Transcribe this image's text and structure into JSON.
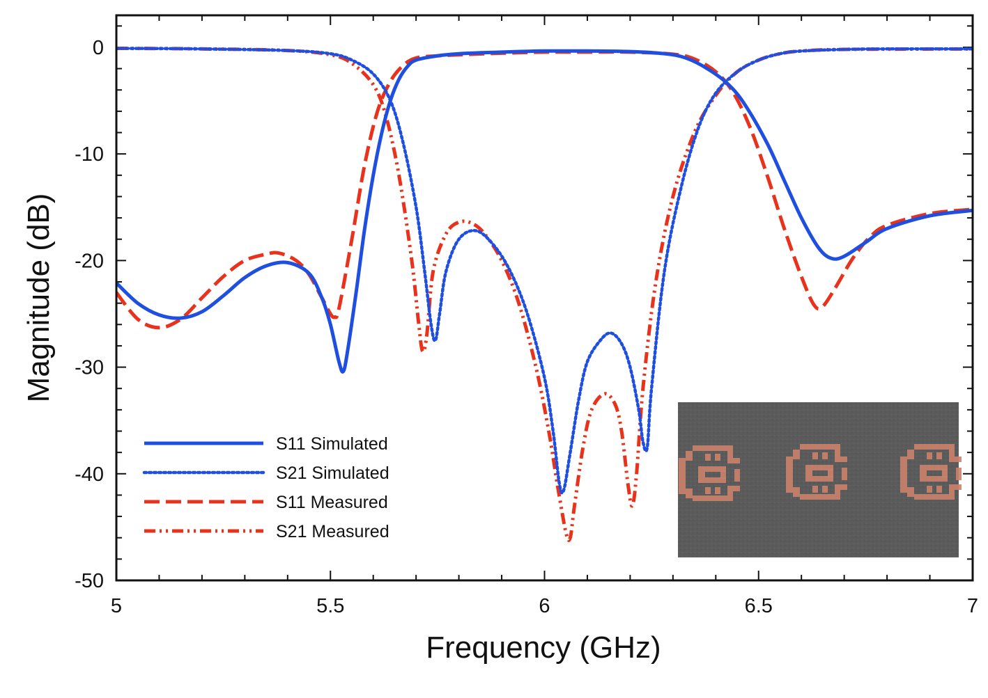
{
  "chart_data": {
    "type": "line",
    "title": "",
    "xlabel": "Frequency (GHz)",
    "ylabel": "Magnitude (dB)",
    "xlim": [
      5,
      7
    ],
    "ylim": [
      -50,
      3
    ],
    "xticks": [
      5,
      5.5,
      6,
      6.5,
      7
    ],
    "xtick_labels": [
      "5",
      "5.5",
      "6",
      "6.5",
      "7"
    ],
    "yticks": [
      0,
      -10,
      -20,
      -30,
      -40,
      -50
    ],
    "ytick_labels": [
      "0",
      "-10",
      "-20",
      "-30",
      "-40",
      "-50"
    ],
    "grid": false,
    "legend_position": "bottom-left",
    "series": [
      {
        "name": "S11 Simulated",
        "color": "#1f4fe0",
        "dash": "solid",
        "x": [
          5.0,
          5.05,
          5.1,
          5.15,
          5.2,
          5.25,
          5.3,
          5.35,
          5.4,
          5.45,
          5.48,
          5.5,
          5.52,
          5.53,
          5.54,
          5.56,
          5.58,
          5.6,
          5.62,
          5.64,
          5.66,
          5.68,
          5.7,
          5.75,
          5.8,
          5.9,
          6.0,
          6.1,
          6.2,
          6.28,
          6.33,
          6.38,
          6.43,
          6.47,
          6.52,
          6.56,
          6.6,
          6.64,
          6.67,
          6.7,
          6.75,
          6.8,
          6.9,
          7.0
        ],
        "y": [
          -22.1,
          -24.0,
          -25.1,
          -25.4,
          -24.8,
          -23.3,
          -21.6,
          -20.5,
          -20.2,
          -21.2,
          -23.5,
          -26.0,
          -29.5,
          -30.4,
          -28.5,
          -23.0,
          -17.0,
          -12.0,
          -8.0,
          -5.0,
          -3.0,
          -1.8,
          -1.2,
          -0.8,
          -0.6,
          -0.45,
          -0.35,
          -0.35,
          -0.4,
          -0.6,
          -1.0,
          -2.0,
          -3.5,
          -5.5,
          -9.0,
          -12.5,
          -16.0,
          -18.8,
          -19.8,
          -19.6,
          -18.3,
          -17.0,
          -15.8,
          -15.3
        ]
      },
      {
        "name": "S21 Simulated",
        "color": "#1f4fe0",
        "dash": "dotted",
        "x": [
          5.0,
          5.2,
          5.4,
          5.5,
          5.55,
          5.6,
          5.64,
          5.67,
          5.7,
          5.72,
          5.735,
          5.745,
          5.755,
          5.77,
          5.8,
          5.84,
          5.88,
          5.92,
          5.96,
          6.0,
          6.02,
          6.035,
          6.045,
          6.06,
          6.08,
          6.1,
          6.13,
          6.155,
          6.18,
          6.2,
          6.22,
          6.23,
          6.24,
          6.25,
          6.28,
          6.32,
          6.36,
          6.4,
          6.45,
          6.5,
          6.55,
          6.6,
          6.7,
          6.8,
          7.0
        ],
        "y": [
          -0.1,
          -0.15,
          -0.3,
          -0.6,
          -1.2,
          -2.5,
          -5.0,
          -9.0,
          -15.0,
          -21.0,
          -26.0,
          -27.5,
          -25.0,
          -21.0,
          -18.0,
          -17.2,
          -18.5,
          -21.0,
          -25.0,
          -31.0,
          -36.0,
          -41.0,
          -41.5,
          -38.0,
          -33.0,
          -29.5,
          -27.5,
          -26.8,
          -27.8,
          -30.0,
          -34.0,
          -37.0,
          -37.5,
          -32.0,
          -21.0,
          -13.0,
          -7.5,
          -4.3,
          -2.3,
          -1.2,
          -0.6,
          -0.35,
          -0.2,
          -0.15,
          -0.15
        ]
      },
      {
        "name": "S11 Measured",
        "color": "#e8321c",
        "dash": "dashed",
        "x": [
          5.0,
          5.05,
          5.1,
          5.15,
          5.2,
          5.25,
          5.3,
          5.35,
          5.38,
          5.42,
          5.45,
          5.48,
          5.5,
          5.51,
          5.52,
          5.55,
          5.58,
          5.61,
          5.64,
          5.67,
          5.7,
          5.75,
          5.8,
          5.9,
          6.0,
          6.1,
          6.2,
          6.3,
          6.35,
          6.4,
          6.44,
          6.48,
          6.52,
          6.56,
          6.6,
          6.63,
          6.65,
          6.68,
          6.72,
          6.76,
          6.8,
          6.9,
          7.0
        ],
        "y": [
          -23.0,
          -25.5,
          -26.3,
          -25.5,
          -23.5,
          -21.5,
          -20.0,
          -19.4,
          -19.3,
          -20.0,
          -21.3,
          -23.5,
          -25.0,
          -25.3,
          -24.5,
          -18.0,
          -11.0,
          -6.0,
          -3.2,
          -1.7,
          -1.0,
          -0.8,
          -0.7,
          -0.55,
          -0.45,
          -0.45,
          -0.45,
          -0.65,
          -1.1,
          -2.3,
          -4.2,
          -7.5,
          -12.0,
          -17.0,
          -21.5,
          -24.2,
          -24.3,
          -22.5,
          -19.8,
          -17.8,
          -16.7,
          -15.6,
          -15.2
        ]
      },
      {
        "name": "S21 Measured",
        "color": "#e8321c",
        "dash": "dashdotdot",
        "x": [
          5.0,
          5.2,
          5.4,
          5.5,
          5.55,
          5.6,
          5.63,
          5.66,
          5.69,
          5.705,
          5.715,
          5.725,
          5.74,
          5.77,
          5.8,
          5.83,
          5.86,
          5.9,
          5.94,
          5.98,
          6.01,
          6.03,
          6.05,
          6.06,
          6.07,
          6.09,
          6.11,
          6.14,
          6.165,
          6.18,
          6.195,
          6.205,
          6.215,
          6.23,
          6.26,
          6.3,
          6.35,
          6.4,
          6.45,
          6.5,
          6.55,
          6.6,
          6.7,
          7.0
        ],
        "y": [
          -0.1,
          -0.15,
          -0.3,
          -0.7,
          -1.5,
          -3.5,
          -6.5,
          -12.0,
          -20.0,
          -25.5,
          -28.5,
          -27.0,
          -21.0,
          -17.5,
          -16.4,
          -16.5,
          -17.5,
          -20.0,
          -24.0,
          -30.0,
          -36.0,
          -41.0,
          -45.5,
          -46.0,
          -43.0,
          -37.5,
          -34.0,
          -32.5,
          -33.5,
          -36.0,
          -41.0,
          -43.0,
          -40.0,
          -32.0,
          -22.0,
          -14.0,
          -8.0,
          -4.5,
          -2.3,
          -1.2,
          -0.6,
          -0.35,
          -0.2,
          -0.15
        ]
      }
    ]
  },
  "inset": {
    "description_icon": "fabricated-filter-photo-icon",
    "background_color": "#5a5a5a",
    "pattern_color": "#c9826a"
  }
}
